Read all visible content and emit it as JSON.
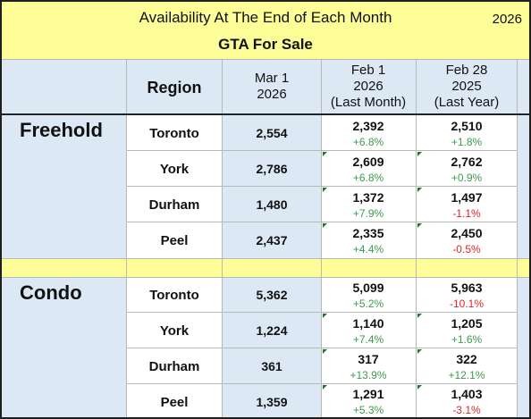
{
  "header": {
    "title": "Availability At The End of Each Month",
    "year": "2026",
    "subtitle": "GTA For Sale"
  },
  "columns": {
    "region": "Region",
    "current": [
      "Mar 1",
      "2026"
    ],
    "last_month": [
      "Feb 1",
      "2026",
      "(Last Month)"
    ],
    "last_year": [
      "Feb 28",
      "2025",
      "(Last Year)"
    ]
  },
  "groups": [
    {
      "label": "Freehold",
      "rows": [
        {
          "region": "Toronto",
          "current": "2,554",
          "last_month": "2,392",
          "last_month_change": "+6.8%",
          "last_year": "2,510",
          "last_year_change": "+1.8%"
        },
        {
          "region": "York",
          "current": "2,786",
          "last_month": "2,609",
          "last_month_change": "+6.8%",
          "last_year": "2,762",
          "last_year_change": "+0.9%"
        },
        {
          "region": "Durham",
          "current": "1,480",
          "last_month": "1,372",
          "last_month_change": "+7.9%",
          "last_year": "1,497",
          "last_year_change": "-1.1%"
        },
        {
          "region": "Peel",
          "current": "2,437",
          "last_month": "2,335",
          "last_month_change": "+4.4%",
          "last_year": "2,450",
          "last_year_change": "-0.5%"
        }
      ]
    },
    {
      "label": "Condo",
      "rows": [
        {
          "region": "Toronto",
          "current": "5,362",
          "last_month": "5,099",
          "last_month_change": "+5.2%",
          "last_year": "5,963",
          "last_year_change": "-10.1%"
        },
        {
          "region": "York",
          "current": "1,224",
          "last_month": "1,140",
          "last_month_change": "+7.4%",
          "last_year": "1,205",
          "last_year_change": "+1.6%"
        },
        {
          "region": "Durham",
          "current": "361",
          "last_month": "317",
          "last_month_change": "+13.9%",
          "last_year": "322",
          "last_year_change": "+12.1%"
        },
        {
          "region": "Peel",
          "current": "1,359",
          "last_month": "1,291",
          "last_month_change": "+5.3%",
          "last_year": "1,403",
          "last_year_change": "-3.1%"
        }
      ]
    }
  ],
  "colors": {
    "title_band": "#fefe99",
    "table_bg": "#dce9f5",
    "positive": "#3e9a4d",
    "negative": "#e02424"
  }
}
